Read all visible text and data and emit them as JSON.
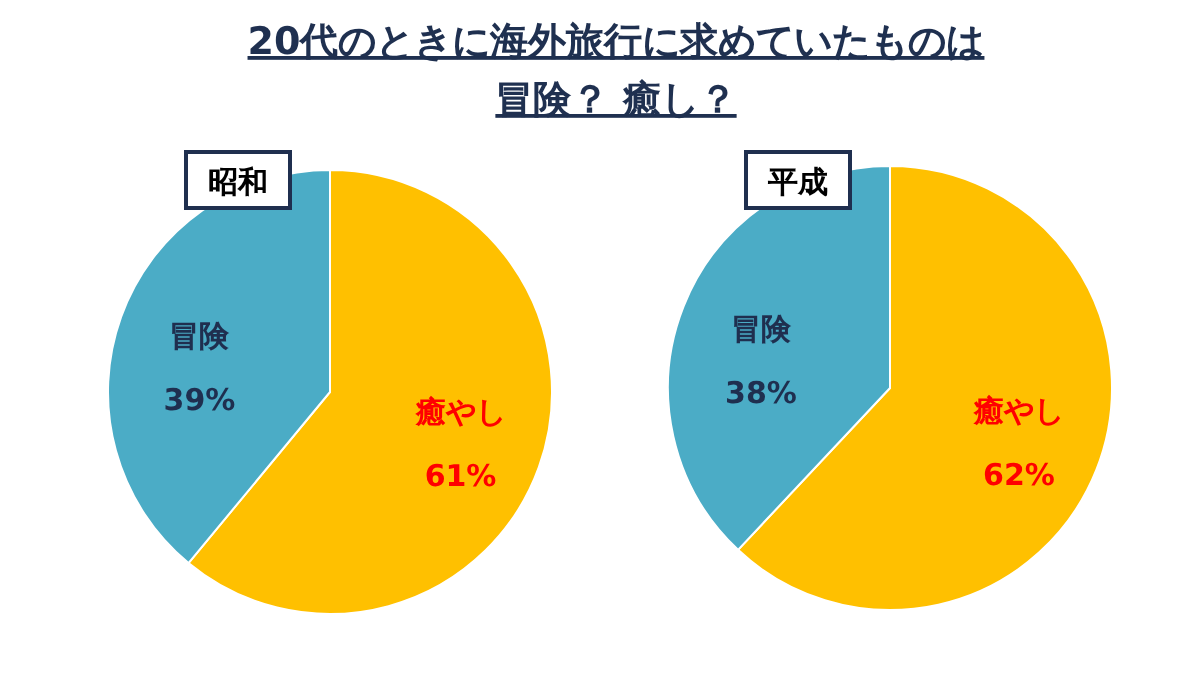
{
  "chart_data": [
    {
      "type": "pie",
      "title": "昭和",
      "annotations": [
        "20代のときに海外旅行に求めていたものは",
        "冒険？ 癒し？"
      ],
      "categories": [
        "癒やし",
        "冒険"
      ],
      "values": [
        61,
        39
      ],
      "colors": [
        "#ffc000",
        "#4bacc6"
      ],
      "value_labels": [
        "61%",
        "39%"
      ]
    },
    {
      "type": "pie",
      "title": "平成",
      "categories": [
        "癒やし",
        "冒険"
      ],
      "values": [
        62,
        38
      ],
      "colors": [
        "#ffc000",
        "#4bacc6"
      ],
      "value_labels": [
        "62%",
        "38%"
      ]
    }
  ]
}
